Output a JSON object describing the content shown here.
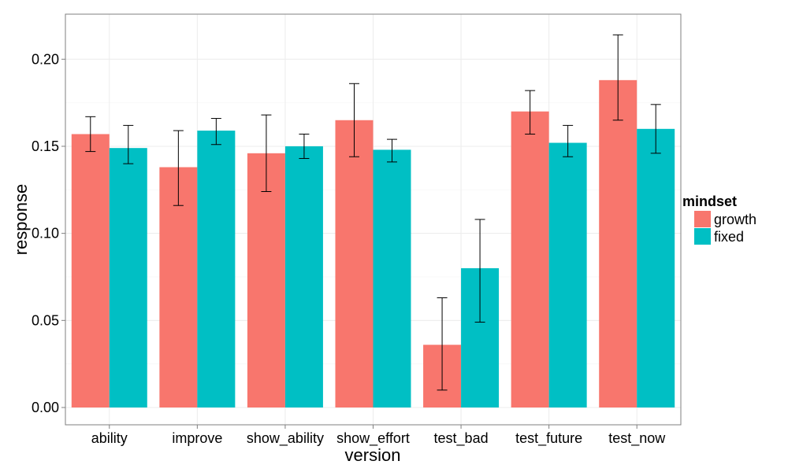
{
  "chart_data": {
    "type": "bar",
    "xlabel": "version",
    "ylabel": "response",
    "categories": [
      "ability",
      "improve",
      "show_ability",
      "show_effort",
      "test_bad",
      "test_future",
      "test_now"
    ],
    "ylim": [
      -0.01,
      0.225
    ],
    "yticks": [
      0.0,
      0.05,
      0.1,
      0.15,
      0.2
    ],
    "ytick_labels": [
      "0.00",
      "0.05",
      "0.10",
      "0.15",
      "0.20"
    ],
    "grid": true,
    "legend_position": "right",
    "legend_title": "mindset",
    "series": [
      {
        "name": "growth",
        "color": "#F8766D",
        "values": [
          0.157,
          0.138,
          0.146,
          0.165,
          0.036,
          0.17,
          0.188
        ],
        "error_low": [
          0.147,
          0.116,
          0.124,
          0.144,
          0.01,
          0.157,
          0.165
        ],
        "error_high": [
          0.167,
          0.159,
          0.168,
          0.186,
          0.063,
          0.182,
          0.214
        ]
      },
      {
        "name": "fixed",
        "color": "#00BFC4",
        "values": [
          0.149,
          0.159,
          0.15,
          0.148,
          0.08,
          0.152,
          0.16
        ],
        "error_low": [
          0.14,
          0.151,
          0.143,
          0.141,
          0.049,
          0.144,
          0.146
        ],
        "error_high": [
          0.162,
          0.166,
          0.157,
          0.154,
          0.108,
          0.162,
          0.174
        ]
      }
    ]
  }
}
